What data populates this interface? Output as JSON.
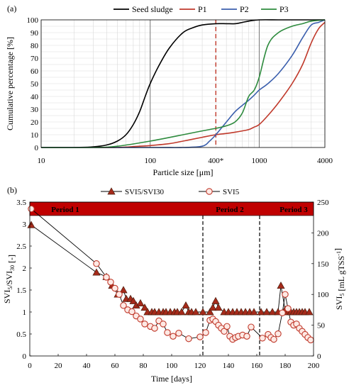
{
  "chart_data": [
    {
      "panel_label": "(a)",
      "type": "line",
      "xlabel": "Particle size [μm]",
      "ylabel": "Cumulative percentage [%]",
      "x_scale": "log",
      "xlim": [
        10,
        4000
      ],
      "ylim": [
        0,
        100
      ],
      "x_ticks": [
        {
          "value": 10,
          "label": "10"
        },
        {
          "value": 100,
          "label": "100"
        },
        {
          "value": 400,
          "label": "400*"
        },
        {
          "value": 1000,
          "label": "1000"
        },
        {
          "value": 4000,
          "label": "4000"
        }
      ],
      "y_ticks": [
        0,
        10,
        20,
        30,
        40,
        50,
        60,
        70,
        80,
        90,
        100
      ],
      "grid": true,
      "legend_position": "top",
      "reference_lines": [
        {
          "x": 400,
          "color": "#c0392b",
          "style": "dashed"
        },
        {
          "x": 100,
          "color": "#777777",
          "style": "solid"
        },
        {
          "x": 1000,
          "color": "#777777",
          "style": "solid"
        }
      ],
      "series": [
        {
          "name": "Seed sludge",
          "color": "#000000",
          "x": [
            10,
            20,
            30,
            40,
            50,
            60,
            70,
            80,
            90,
            100,
            120,
            150,
            200,
            250,
            300,
            400,
            500,
            600,
            700,
            800,
            1000,
            1500,
            2000,
            4000
          ],
          "y": [
            0,
            0,
            0.5,
            2,
            5,
            10,
            18,
            28,
            40,
            50,
            64,
            78,
            90,
            94,
            96,
            97,
            97,
            97,
            98,
            99,
            100,
            100,
            100,
            100
          ]
        },
        {
          "name": "P1",
          "color": "#c0392b",
          "x": [
            10,
            30,
            50,
            80,
            100,
            150,
            200,
            300,
            400,
            500,
            600,
            700,
            800,
            900,
            1000,
            1200,
            1500,
            2000,
            2500,
            3000,
            3500,
            4000
          ],
          "y": [
            0,
            0,
            0,
            1,
            1.5,
            3,
            5,
            8,
            10,
            11,
            12,
            13,
            14,
            16,
            18,
            25,
            35,
            50,
            65,
            82,
            93,
            98
          ]
        },
        {
          "name": "P2",
          "color": "#3b5fad",
          "x": [
            10,
            100,
            200,
            300,
            350,
            400,
            500,
            600,
            700,
            800,
            900,
            1000,
            1200,
            1500,
            2000,
            2500,
            3000,
            3500,
            4000
          ],
          "y": [
            0,
            0,
            0,
            1,
            5,
            10,
            20,
            28,
            33,
            37,
            41,
            45,
            50,
            58,
            72,
            86,
            96,
            98,
            100
          ]
        },
        {
          "name": "P3",
          "color": "#2e8b3e",
          "x": [
            10,
            30,
            50,
            100,
            200,
            300,
            400,
            500,
            600,
            700,
            800,
            900,
            1000,
            1200,
            1500,
            2000,
            2500,
            3000,
            4000
          ],
          "y": [
            0,
            0,
            1,
            5,
            10,
            13,
            15,
            17,
            20,
            27,
            40,
            45,
            55,
            80,
            90,
            95,
            97,
            99,
            100
          ]
        }
      ]
    },
    {
      "panel_label": "(b)",
      "type": "line",
      "xlabel": "Time [days]",
      "ylabel_left": "SVI5/SVI30 [-]",
      "ylabel_right": "SVI5 [mL gTSS⁻¹]",
      "xlim": [
        0,
        200
      ],
      "ylim_left": [
        0,
        3.5
      ],
      "ylim_right": [
        0,
        250
      ],
      "x_ticks": [
        0,
        20,
        40,
        60,
        80,
        100,
        120,
        140,
        160,
        180,
        200
      ],
      "y_ticks_left": [
        "0",
        "0.5",
        "1",
        "1.5",
        "2",
        "2.5",
        "3",
        "3.5"
      ],
      "y_ticks_right": [
        0,
        50,
        100,
        150,
        200,
        250
      ],
      "legend_position": "top",
      "period_band_color": "#c00000",
      "periods": [
        {
          "label": "Period 1",
          "start": 0,
          "end": 122
        },
        {
          "label": "Period 2",
          "start": 122,
          "end": 162
        },
        {
          "label": "Period 3",
          "start": 162,
          "end": 200
        }
      ],
      "period_boundaries": [
        122,
        162
      ],
      "series": [
        {
          "name": "SVI5/SVI30",
          "axis": "left",
          "marker": "triangle",
          "color": "#a52a1a",
          "x": [
            1,
            47,
            54,
            58,
            62,
            66,
            68,
            71,
            73,
            75,
            78,
            81,
            83,
            86,
            88,
            91,
            94,
            96,
            99,
            102,
            104,
            107,
            110,
            112,
            114,
            117,
            122,
            127,
            129,
            131,
            133,
            137,
            140,
            143,
            146,
            149,
            152,
            155,
            158,
            163,
            167,
            171,
            175,
            177,
            180,
            182,
            184,
            186,
            188,
            190,
            192,
            194,
            197
          ],
          "y": [
            2.98,
            1.9,
            1.8,
            1.6,
            1.4,
            1.5,
            1.3,
            1.3,
            1.25,
            1.15,
            1.2,
            1.1,
            1.0,
            1.0,
            1.0,
            1.0,
            1.0,
            1.0,
            1.0,
            1.0,
            1.0,
            1.0,
            1.15,
            1.0,
            1.0,
            1.0,
            1.0,
            1.0,
            1.1,
            1.25,
            1.1,
            1.0,
            1.0,
            1.0,
            1.0,
            1.0,
            1.0,
            1.0,
            1.0,
            1.0,
            1.0,
            1.0,
            1.0,
            1.6,
            1.05,
            1.0,
            1.0,
            1.0,
            1.0,
            1.0,
            1.0,
            1.0,
            1.0
          ]
        },
        {
          "name": "SVI5",
          "axis": "right",
          "marker": "circle",
          "color": "#c0392b",
          "x": [
            1,
            47,
            54,
            57,
            60,
            63,
            66,
            69,
            72,
            75,
            78,
            81,
            85,
            88,
            91,
            94,
            97,
            101,
            105,
            112,
            120,
            124,
            127,
            129,
            131,
            133,
            135,
            137,
            139,
            141,
            143,
            145,
            147,
            150,
            153,
            156,
            164,
            168,
            170,
            172,
            175,
            178,
            180,
            182,
            184,
            186,
            188,
            190,
            192,
            194,
            196,
            198
          ],
          "y": [
            239,
            150,
            128,
            120,
            110,
            100,
            82,
            75,
            72,
            65,
            60,
            52,
            48,
            45,
            57,
            52,
            38,
            32,
            37,
            28,
            31,
            38,
            58,
            60,
            56,
            50,
            45,
            40,
            48,
            32,
            27,
            30,
            32,
            34,
            32,
            47,
            29,
            35,
            30,
            27,
            36,
            70,
            100,
            77,
            55,
            50,
            52,
            45,
            40,
            35,
            30,
            26
          ]
        }
      ]
    }
  ]
}
